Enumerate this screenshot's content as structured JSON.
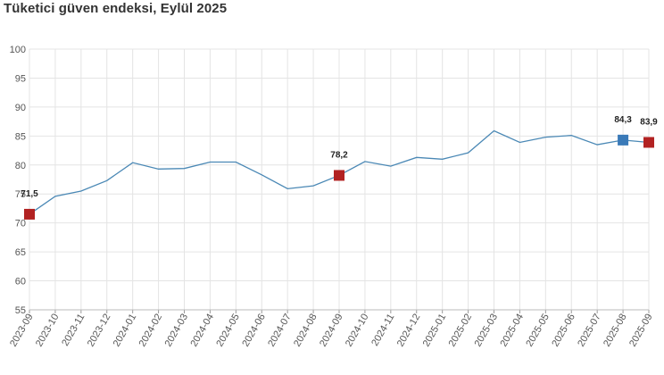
{
  "chart_data": {
    "type": "line",
    "title": "Tüketici güven endeksi, Eylül 2025",
    "xlabel": "",
    "ylabel": "",
    "ylim": [
      55,
      100
    ],
    "yticks": [
      55,
      60,
      65,
      70,
      75,
      80,
      85,
      90,
      95,
      100
    ],
    "grid": true,
    "legend": "none",
    "x": [
      "2023-09",
      "2023-10",
      "2023-11",
      "2023-12",
      "2024-01",
      "2024-02",
      "2024-03",
      "2024-04",
      "2024-05",
      "2024-06",
      "2024-07",
      "2024-08",
      "2024-09",
      "2024-10",
      "2024-11",
      "2024-12",
      "2025-01",
      "2025-02",
      "2025-03",
      "2025-04",
      "2025-05",
      "2025-06",
      "2025-07",
      "2025-08",
      "2025-09"
    ],
    "series": [
      {
        "name": "",
        "values": [
          71.5,
          74.6,
          75.5,
          77.3,
          80.4,
          79.3,
          79.4,
          80.5,
          80.5,
          78.3,
          75.9,
          76.4,
          78.2,
          80.6,
          79.8,
          81.3,
          81.0,
          82.1,
          85.9,
          83.9,
          84.8,
          85.1,
          83.5,
          84.3,
          83.9
        ]
      }
    ],
    "line_color": "#4a88b5",
    "highlights": [
      {
        "x": "2023-09",
        "value": 71.5,
        "label": "71,5",
        "color": "#b22222"
      },
      {
        "x": "2024-09",
        "value": 78.2,
        "label": "78,2",
        "color": "#b22222"
      },
      {
        "x": "2025-08",
        "value": 84.3,
        "label": "84,3",
        "color": "#3a7ab8"
      },
      {
        "x": "2025-09",
        "value": 83.9,
        "label": "83,9",
        "color": "#b22222"
      }
    ]
  }
}
